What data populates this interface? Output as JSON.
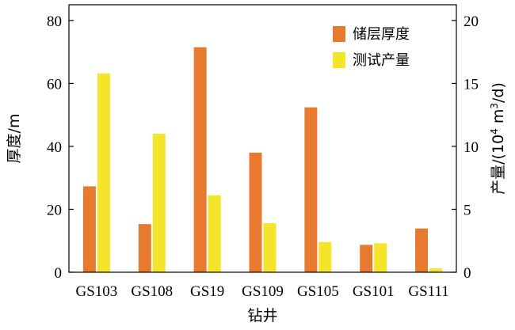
{
  "chart_data": {
    "type": "bar",
    "xlabel": "钻井",
    "ylabel_left": "厚度/m",
    "ylabel_right": {
      "prefix": "产量/(10",
      "exp1": "4",
      "middle": " m",
      "exp2": "3",
      "suffix": "/d)"
    },
    "categories": [
      "GS103",
      "GS108",
      "GS19",
      "GS109",
      "GS105",
      "GS101",
      "GS111"
    ],
    "series": [
      {
        "name": "储层厚度",
        "axis": "left",
        "color": "#E87A2F",
        "values": [
          27.3,
          15.3,
          71.5,
          38.0,
          52.4,
          8.7,
          13.9
        ]
      },
      {
        "name": "测试产量",
        "axis": "right",
        "color": "#F5E52A",
        "values": [
          15.8,
          11.0,
          6.1,
          3.9,
          2.4,
          2.3,
          0.3
        ]
      }
    ],
    "ylim_left": [
      0,
      85
    ],
    "ylim_right": [
      0,
      21.25
    ],
    "yticks_left": [
      "0",
      "20",
      "40",
      "60",
      "80"
    ],
    "yticks_right": [
      "0",
      "5",
      "10",
      "15",
      "20"
    ],
    "grid": false,
    "legend_position": "top-right"
  }
}
